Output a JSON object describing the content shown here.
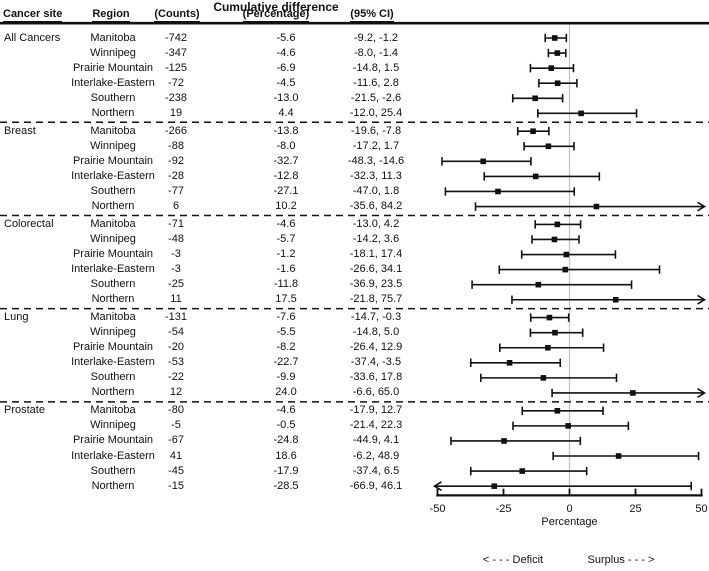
{
  "figure": {
    "title": "Cumulative difference",
    "headers": {
      "cancer_site": "Cancer site",
      "region": "Region",
      "counts": "(Counts)",
      "percentage": "(Percentage)",
      "ci": "(95% CI)"
    },
    "axis_label": "Percentage",
    "deficit_label": "< - - - Deficit",
    "surplus_label": "Surplus - - - >"
  },
  "colors": {
    "ink": "#111111",
    "zero_line": "#c4c4c4"
  },
  "chart_data": {
    "type": "forest",
    "title": "Cumulative difference",
    "xlabel": "Percentage",
    "xlim": [
      -50,
      50
    ],
    "xticks": [
      -50,
      -25,
      0,
      25,
      50
    ],
    "zero_reference_line": 0,
    "note_left": "< - - - Deficit",
    "note_right": "Surplus - - - >",
    "groups": [
      {
        "site": "All Cancers",
        "rows": [
          {
            "region": "Manitoba",
            "counts": -742,
            "pct": -5.6,
            "lo": -9.2,
            "hi": -1.2
          },
          {
            "region": "Winnipeg",
            "counts": -347,
            "pct": -4.6,
            "lo": -8.0,
            "hi": -1.4
          },
          {
            "region": "Prairie Mountain",
            "counts": -125,
            "pct": -6.9,
            "lo": -14.8,
            "hi": 1.5
          },
          {
            "region": "Interlake-Eastern",
            "counts": -72,
            "pct": -4.5,
            "lo": -11.6,
            "hi": 2.8
          },
          {
            "region": "Southern",
            "counts": -238,
            "pct": -13.0,
            "lo": -21.5,
            "hi": -2.6
          },
          {
            "region": "Northern",
            "counts": 19,
            "pct": 4.4,
            "lo": -12.0,
            "hi": 25.4
          }
        ]
      },
      {
        "site": "Breast",
        "rows": [
          {
            "region": "Manitoba",
            "counts": -266,
            "pct": -13.8,
            "lo": -19.6,
            "hi": -7.8
          },
          {
            "region": "Winnipeg",
            "counts": -88,
            "pct": -8.0,
            "lo": -17.2,
            "hi": 1.7
          },
          {
            "region": "Prairie Mountain",
            "counts": -92,
            "pct": -32.7,
            "lo": -48.3,
            "hi": -14.6
          },
          {
            "region": "Interlake-Eastern",
            "counts": -28,
            "pct": -12.8,
            "lo": -32.3,
            "hi": 11.3
          },
          {
            "region": "Southern",
            "counts": -77,
            "pct": -27.1,
            "lo": -47.0,
            "hi": 1.8
          },
          {
            "region": "Northern",
            "counts": 6,
            "pct": 10.2,
            "lo": -35.6,
            "hi": 84.2
          }
        ]
      },
      {
        "site": "Colorectal",
        "rows": [
          {
            "region": "Manitoba",
            "counts": -71,
            "pct": -4.6,
            "lo": -13.0,
            "hi": 4.2
          },
          {
            "region": "Winnipeg",
            "counts": -48,
            "pct": -5.7,
            "lo": -14.2,
            "hi": 3.6
          },
          {
            "region": "Prairie Mountain",
            "counts": -3,
            "pct": -1.2,
            "lo": -18.1,
            "hi": 17.4
          },
          {
            "region": "Interlake-Eastern",
            "counts": -3,
            "pct": -1.6,
            "lo": -26.6,
            "hi": 34.1
          },
          {
            "region": "Southern",
            "counts": -25,
            "pct": -11.8,
            "lo": -36.9,
            "hi": 23.5
          },
          {
            "region": "Northern",
            "counts": 11,
            "pct": 17.5,
            "lo": -21.8,
            "hi": 75.7
          }
        ]
      },
      {
        "site": "Lung",
        "rows": [
          {
            "region": "Manitoba",
            "counts": -131,
            "pct": -7.6,
            "lo": -14.7,
            "hi": -0.3
          },
          {
            "region": "Winnipeg",
            "counts": -54,
            "pct": -5.5,
            "lo": -14.8,
            "hi": 5.0
          },
          {
            "region": "Prairie Mountain",
            "counts": -20,
            "pct": -8.2,
            "lo": -26.4,
            "hi": 12.9
          },
          {
            "region": "Interlake-Eastern",
            "counts": -53,
            "pct": -22.7,
            "lo": -37.4,
            "hi": -3.5
          },
          {
            "region": "Southern",
            "counts": -22,
            "pct": -9.9,
            "lo": -33.6,
            "hi": 17.8
          },
          {
            "region": "Northern",
            "counts": 12,
            "pct": 24.0,
            "lo": -6.6,
            "hi": 65.0
          }
        ]
      },
      {
        "site": "Prostate",
        "rows": [
          {
            "region": "Manitoba",
            "counts": -80,
            "pct": -4.6,
            "lo": -17.9,
            "hi": 12.7
          },
          {
            "region": "Winnipeg",
            "counts": -5,
            "pct": -0.5,
            "lo": -21.4,
            "hi": 22.3
          },
          {
            "region": "Prairie Mountain",
            "counts": -67,
            "pct": -24.8,
            "lo": -44.9,
            "hi": 4.1
          },
          {
            "region": "Interlake-Eastern",
            "counts": 41,
            "pct": 18.6,
            "lo": -6.2,
            "hi": 48.9
          },
          {
            "region": "Southern",
            "counts": -45,
            "pct": -17.9,
            "lo": -37.4,
            "hi": 6.5
          },
          {
            "region": "Northern",
            "counts": -15,
            "pct": -28.5,
            "lo": -66.9,
            "hi": 46.1
          }
        ]
      }
    ]
  }
}
